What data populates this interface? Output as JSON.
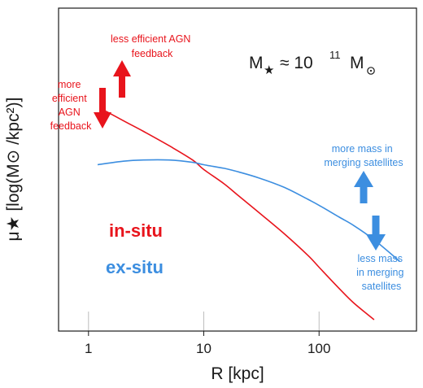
{
  "chart_data": {
    "type": "line",
    "x_scale": "log",
    "xlim": [
      0.55,
      700
    ],
    "xlabel": "R [kpc]",
    "ylabel": "μ★ [log(M⊙ /kpc²)]",
    "x_ticks": [
      1,
      10,
      100
    ],
    "x_tick_labels": [
      "1",
      "10",
      "100"
    ],
    "y_ticks": "none (arbitrary units)",
    "ylim": [
      0,
      1
    ],
    "grid": "vertical lines at x ticks",
    "series": [
      {
        "name": "in-situ",
        "color": "#e8141c",
        "x": [
          1.35,
          2,
          3,
          5,
          8,
          10,
          15,
          20,
          30,
          50,
          80,
          100,
          150,
          200,
          300
        ],
        "y": [
          0.88,
          0.835,
          0.79,
          0.73,
          0.67,
          0.63,
          0.57,
          0.52,
          0.45,
          0.36,
          0.27,
          0.22,
          0.13,
          0.07,
          0.0
        ]
      },
      {
        "name": "ex-situ",
        "color": "#3c8ee0",
        "x": [
          1.2,
          2,
          3,
          5,
          8,
          10,
          15,
          20,
          30,
          50,
          80,
          100,
          150,
          200,
          300,
          500
        ],
        "y": [
          0.65,
          0.665,
          0.67,
          0.67,
          0.66,
          0.65,
          0.635,
          0.62,
          0.595,
          0.555,
          0.505,
          0.48,
          0.43,
          0.395,
          0.335,
          0.245
        ]
      }
    ],
    "text_labels": [
      {
        "text": "in-situ",
        "color": "#e8141c"
      },
      {
        "text": "ex-situ",
        "color": "#3c8ee0"
      }
    ],
    "mass_label": {
      "M": "M",
      "approx": "≈ 10",
      "exp": "11",
      "unit": "M"
    },
    "annotations": [
      {
        "lines": [
          "less efficient AGN",
          "feedback"
        ],
        "color": "#e8141c"
      },
      {
        "lines": [
          "more",
          "efficient",
          "AGN",
          "feedback"
        ],
        "color": "#e8141c"
      },
      {
        "lines": [
          "more mass in",
          "merging satellites"
        ],
        "color": "#3c8ee0"
      },
      {
        "lines": [
          "less mass",
          "in merging",
          "satellites"
        ],
        "color": "#3c8ee0"
      }
    ],
    "arrows": [
      {
        "direction": "up",
        "color": "#e8141c",
        "refers_to": "in-situ"
      },
      {
        "direction": "down",
        "color": "#e8141c",
        "refers_to": "in-situ"
      },
      {
        "direction": "up",
        "color": "#3c8ee0",
        "refers_to": "ex-situ"
      },
      {
        "direction": "down",
        "color": "#3c8ee0",
        "refers_to": "ex-situ"
      }
    ]
  }
}
